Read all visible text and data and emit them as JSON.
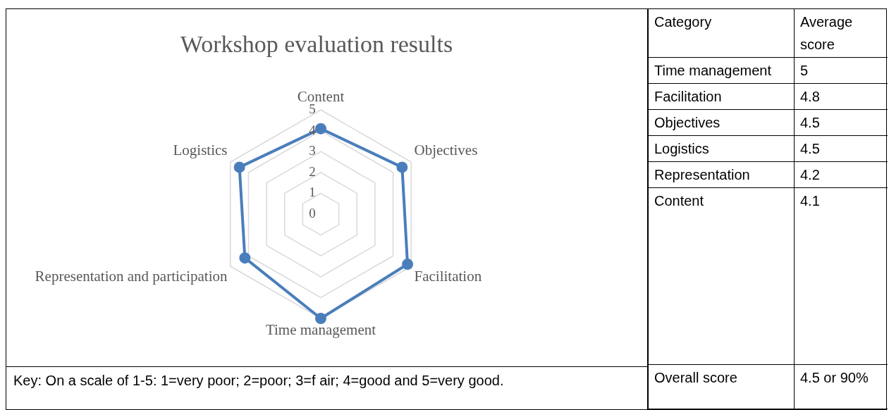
{
  "chart_data": [
    {
      "type": "radar",
      "title": "Workshop evaluation results",
      "categories": [
        "Content",
        "Objectives",
        "Facilitation",
        "Time management",
        "Representation and participation",
        "Logistics"
      ],
      "series": [
        {
          "color": "#4a7ebb",
          "values": [
            4.1,
            4.5,
            4.8,
            5,
            4.2,
            4.5
          ]
        }
      ],
      "ylim": [
        0,
        5
      ],
      "yticks": [
        0,
        1,
        2,
        3,
        4,
        5
      ],
      "grid": true,
      "legend": false,
      "marker": "circle",
      "line_style": "solid",
      "annotations": [
        "Key: On a scale of 1-5:  1=very poor; 2=poor; 3=f air;  4=good and  5=very good."
      ]
    },
    {
      "type": "other",
      "annotations": [
        "Category",
        "Average score",
        "Time management",
        "5",
        "Facilitation",
        "4.8",
        "Objectives",
        "4.5",
        "Logistics",
        "4.5",
        "Representation",
        "4.2",
        "Content",
        "4.1",
        "Overall score",
        "4.5 or 90%"
      ]
    }
  ]
}
